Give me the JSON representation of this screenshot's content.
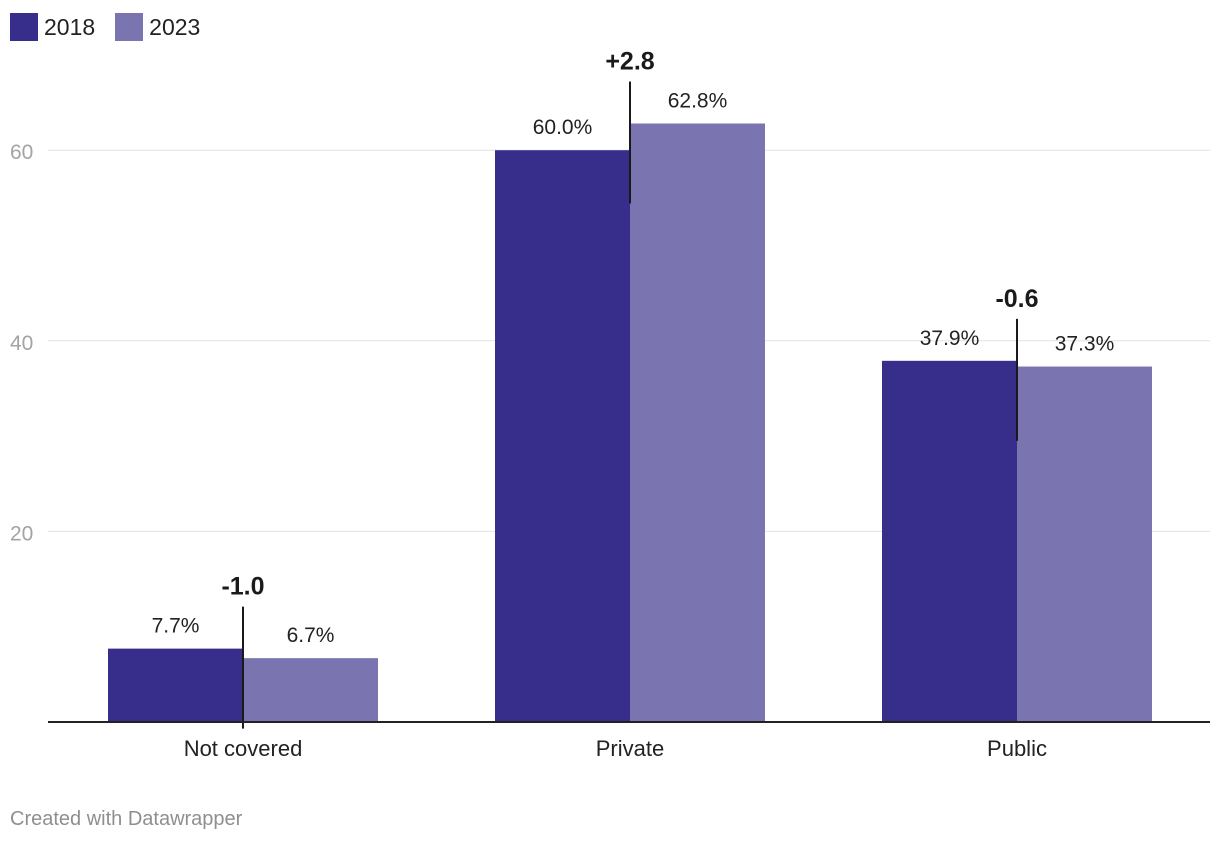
{
  "legend": [
    {
      "label": "2018",
      "color": "#372d8a"
    },
    {
      "label": "2023",
      "color": "#7a74b0"
    }
  ],
  "chart_data": {
    "type": "bar",
    "categories": [
      "Not covered",
      "Private",
      "Public"
    ],
    "series": [
      {
        "name": "2018",
        "values": [
          7.7,
          60.0,
          37.9
        ],
        "labels": [
          "7.7%",
          "60.0%",
          "37.9%"
        ],
        "color": "#372d8a"
      },
      {
        "name": "2023",
        "values": [
          6.7,
          62.8,
          37.3
        ],
        "labels": [
          "6.7%",
          "62.8%",
          "37.3%"
        ],
        "color": "#7a74b0"
      }
    ],
    "change_labels": [
      "-1.0",
      "+2.8",
      "-0.6"
    ],
    "yticks": [
      20,
      40,
      60
    ],
    "ylim": [
      0,
      60
    ],
    "grid": true,
    "legend_position": "top-left"
  },
  "footer": {
    "credit": "Created with Datawrapper"
  }
}
